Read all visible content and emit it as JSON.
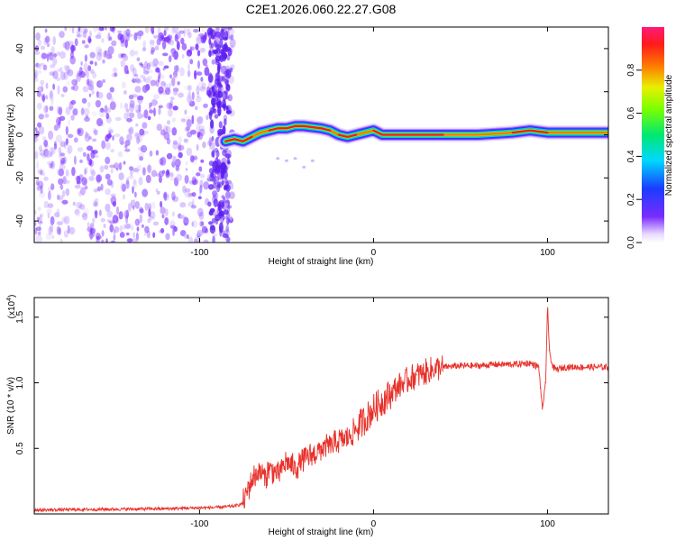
{
  "title": "C2E1.2026.060.22.27.G08",
  "colors": {
    "snr_line": "#e8302a",
    "track_core": "#e81c2c",
    "noise": "#7a2cff",
    "frame": "#000000"
  },
  "chart_data": [
    {
      "type": "heatmap",
      "name": "spectrogram",
      "xlabel": "Height of straight line (km)",
      "ylabel": "Frequency (Hz)",
      "xlim": [
        -195,
        135
      ],
      "ylim": [
        -50,
        50
      ],
      "xticks": [
        -100,
        0,
        100
      ],
      "yticks": [
        -40,
        -20,
        0,
        20,
        40
      ],
      "xtick_labels": [
        "-100",
        "0",
        "100"
      ],
      "ytick_labels": [
        "-40",
        "-20",
        "0",
        "20",
        "40"
      ],
      "noise_region_x": [
        -195,
        -85
      ],
      "track": [
        {
          "x": -85,
          "y": -3
        },
        {
          "x": -80,
          "y": -2
        },
        {
          "x": -75,
          "y": -3
        },
        {
          "x": -70,
          "y": -1
        },
        {
          "x": -65,
          "y": 1
        },
        {
          "x": -60,
          "y": 2
        },
        {
          "x": -55,
          "y": 3
        },
        {
          "x": -50,
          "y": 3
        },
        {
          "x": -45,
          "y": 4
        },
        {
          "x": -40,
          "y": 4
        },
        {
          "x": -30,
          "y": 3
        },
        {
          "x": -25,
          "y": 2
        },
        {
          "x": -20,
          "y": 0
        },
        {
          "x": -15,
          "y": -1
        },
        {
          "x": -10,
          "y": 0
        },
        {
          "x": -5,
          "y": 1
        },
        {
          "x": 0,
          "y": 2
        },
        {
          "x": 5,
          "y": 0
        },
        {
          "x": 20,
          "y": 0
        },
        {
          "x": 40,
          "y": 0
        },
        {
          "x": 60,
          "y": 0
        },
        {
          "x": 80,
          "y": 1
        },
        {
          "x": 90,
          "y": 2
        },
        {
          "x": 100,
          "y": 1
        },
        {
          "x": 110,
          "y": 1
        },
        {
          "x": 135,
          "y": 1
        }
      ],
      "colorbar": {
        "label": "Normalized spectral amplitude",
        "range": [
          0,
          1
        ],
        "ticks": [
          0.0,
          0.2,
          0.4,
          0.6,
          0.8
        ],
        "tick_labels": [
          "0.0",
          "0.2",
          "0.4",
          "0.6",
          "0.8"
        ]
      }
    },
    {
      "type": "line",
      "name": "snr",
      "xlabel": "Height of straight line (km)",
      "ylabel": "SNR (10 * v/v)",
      "multiplier_label": "(x10",
      "multiplier_exp": "4",
      "xlim": [
        -195,
        135
      ],
      "ylim": [
        0,
        1.65
      ],
      "xticks": [
        -100,
        0,
        100
      ],
      "yticks": [
        0.5,
        1.0,
        1.5
      ],
      "xtick_labels": [
        "-100",
        "0",
        "100"
      ],
      "ytick_labels": [
        "0.5",
        "1.0",
        "1.5"
      ],
      "series": [
        {
          "name": "SNR",
          "x": [
            -195,
            -120,
            -90,
            -80,
            -75,
            -72,
            -68,
            -65,
            -62,
            -60,
            -55,
            -50,
            -45,
            -40,
            -35,
            -30,
            -25,
            -20,
            -15,
            -10,
            -5,
            0,
            5,
            10,
            15,
            20,
            25,
            30,
            35,
            40,
            50,
            60,
            70,
            80,
            90,
            95,
            97,
            99,
            100,
            101,
            103,
            105,
            110,
            120,
            135
          ],
          "y": [
            0.03,
            0.04,
            0.05,
            0.06,
            0.08,
            0.2,
            0.3,
            0.32,
            0.28,
            0.35,
            0.3,
            0.4,
            0.35,
            0.42,
            0.45,
            0.5,
            0.52,
            0.55,
            0.58,
            0.65,
            0.72,
            0.8,
            0.86,
            0.92,
            0.98,
            1.02,
            1.06,
            1.08,
            1.1,
            1.12,
            1.13,
            1.13,
            1.14,
            1.14,
            1.15,
            1.12,
            0.8,
            1.0,
            1.62,
            1.25,
            1.12,
            1.1,
            1.12,
            1.12,
            1.12
          ]
        }
      ]
    }
  ]
}
